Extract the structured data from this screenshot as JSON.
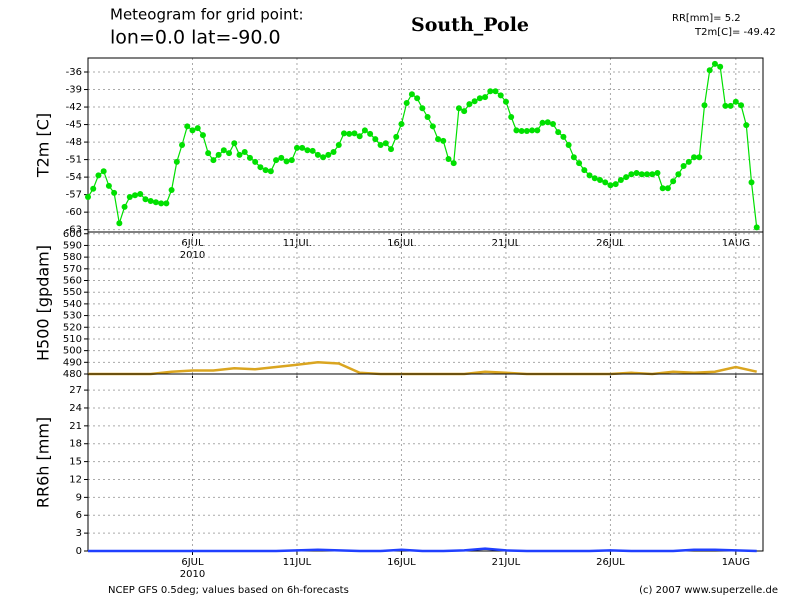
{
  "header": {
    "title_line1": "Meteogram for grid point:",
    "title_line2": "lon=0.0 lat=-90.0",
    "station": "South_Pole",
    "rr": "RR[mm]= 5.2",
    "t2m": "T2m[C]= -49.42"
  },
  "footer": {
    "left": "NCEP GFS 0.5deg; values based on 6h-forecasts",
    "right": "(c) 2007 www.superzelle.de"
  },
  "chart_data": [
    {
      "type": "line",
      "ylabel": "T2m [C]",
      "color": "#00e000",
      "markers": true,
      "grid": true,
      "x_year_label": "2010",
      "xlim": [
        1,
        33.3
      ],
      "ylim": [
        -63.4,
        -33.6
      ],
      "xticks": [
        {
          "value": 6,
          "label": "6JUL"
        },
        {
          "value": 11,
          "label": "11JUL"
        },
        {
          "value": 16,
          "label": "16JUL"
        },
        {
          "value": 21,
          "label": "21JUL"
        },
        {
          "value": 26,
          "label": "26JUL"
        },
        {
          "value": 32,
          "label": "1AUG"
        }
      ],
      "yticks": [
        -36,
        -39,
        -42,
        -45,
        -48,
        -51,
        -54,
        -57,
        -60,
        -63
      ],
      "x": [
        1,
        1.25,
        1.5,
        1.75,
        2,
        2.25,
        2.5,
        2.75,
        3,
        3.25,
        3.5,
        3.75,
        4,
        4.25,
        4.5,
        4.75,
        5,
        5.25,
        5.5,
        5.75,
        6,
        6.25,
        6.5,
        6.75,
        7,
        7.25,
        7.5,
        7.75,
        8,
        8.25,
        8.5,
        8.75,
        9,
        9.25,
        9.5,
        9.75,
        10,
        10.25,
        10.5,
        10.75,
        11,
        11.25,
        11.5,
        11.75,
        12,
        12.25,
        12.5,
        12.75,
        13,
        13.25,
        13.5,
        13.75,
        14,
        14.25,
        14.5,
        14.75,
        15,
        15.25,
        15.5,
        15.75,
        16,
        16.25,
        16.5,
        16.75,
        17,
        17.25,
        17.5,
        17.75,
        18,
        18.25,
        18.5,
        18.75,
        19,
        19.25,
        19.5,
        19.75,
        20,
        20.25,
        20.5,
        20.75,
        21,
        21.25,
        21.5,
        21.75,
        22,
        22.25,
        22.5,
        22.75,
        23,
        23.25,
        23.5,
        23.75,
        24,
        24.25,
        24.5,
        24.75,
        25,
        25.25,
        25.5,
        25.75,
        26,
        26.25,
        26.5,
        26.75,
        27,
        27.25,
        27.5,
        27.75,
        28,
        28.25,
        28.5,
        28.75,
        29,
        29.25,
        29.5,
        29.75,
        30,
        30.25,
        30.5,
        30.75,
        31,
        31.25,
        31.5,
        31.75,
        32,
        32.25,
        32.5,
        32.75,
        33
      ],
      "values": [
        -57.4,
        -56,
        -53.7,
        -53,
        -55.5,
        -56.7,
        -61.9,
        -59.1,
        -57.4,
        -57.1,
        -56.9,
        -57.8,
        -58.1,
        -58.3,
        -58.5,
        -58.5,
        -56.2,
        -51.4,
        -48.5,
        -45.3,
        -46,
        -45.6,
        -46.8,
        -49.9,
        -51.1,
        -50.2,
        -49.4,
        -49.9,
        -48.2,
        -50.2,
        -49.7,
        -50.7,
        -51.4,
        -52.3,
        -52.8,
        -53,
        -51.1,
        -50.7,
        -51.3,
        -51.1,
        -49,
        -49,
        -49.4,
        -49.5,
        -50.2,
        -50.6,
        -50.2,
        -49.7,
        -48.5,
        -46.5,
        -46.6,
        -46.5,
        -47,
        -46,
        -46.6,
        -47.5,
        -48.5,
        -48.2,
        -49.2,
        -47.1,
        -44.9,
        -41.3,
        -39.8,
        -40.5,
        -42.2,
        -43.7,
        -45.3,
        -47.5,
        -47.8,
        -50.9,
        -51.6,
        -42.2,
        -42.7,
        -41.5,
        -41,
        -40.5,
        -40.3,
        -39.3,
        -39.3,
        -40,
        -41.1,
        -43.7,
        -46,
        -46.1,
        -46.1,
        -46,
        -46,
        -44.7,
        -44.6,
        -44.9,
        -46.3,
        -47.1,
        -48.5,
        -50.6,
        -51.6,
        -52.8,
        -53.7,
        -54.2,
        -54.5,
        -54.9,
        -55.4,
        -55.2,
        -54.5,
        -54,
        -53.5,
        -53.3,
        -53.5,
        -53.5,
        -53.5,
        -53.3,
        -55.9,
        -55.9,
        -54.7,
        -53.5,
        -52.1,
        -51.4,
        -50.6,
        -50.6,
        -41.7,
        -35.7,
        -34.6,
        -35.1,
        -41.8,
        -41.8,
        -41.1,
        -41.7,
        -45.1,
        -54.9,
        -62.6
      ]
    },
    {
      "type": "line",
      "ylabel": "H500 [gpdam]",
      "color": "#daa520",
      "markers": false,
      "grid": true,
      "xlim": [
        1,
        33.3
      ],
      "ylim": [
        480,
        601.5
      ],
      "xticks": [
        6,
        11,
        16,
        21,
        26,
        32
      ],
      "yticks": [
        480,
        490,
        500,
        510,
        520,
        530,
        540,
        550,
        560,
        570,
        580,
        590,
        600
      ],
      "x": [
        1,
        2,
        3,
        4,
        5,
        6,
        7,
        8,
        9,
        10,
        11,
        12,
        13,
        14,
        15,
        16,
        17,
        18,
        19,
        20,
        21,
        22,
        23,
        24,
        25,
        26,
        27,
        28,
        29,
        30,
        31,
        32,
        33
      ],
      "values": [
        480,
        480,
        480,
        480,
        482,
        483,
        483,
        485,
        484,
        486,
        488,
        490,
        489,
        481,
        480,
        480,
        480,
        480,
        480,
        482,
        481,
        480,
        480,
        480,
        480,
        480,
        481,
        480,
        482,
        481,
        482,
        486,
        482
      ]
    },
    {
      "type": "line",
      "ylabel": "RR6h [mm]",
      "color": "#2040ff",
      "markers": false,
      "grid": true,
      "x_year_label": "2010",
      "xlim": [
        1,
        33.3
      ],
      "ylim": [
        0,
        29.7
      ],
      "xticks": [
        {
          "value": 6,
          "label": "6JUL"
        },
        {
          "value": 11,
          "label": "11JUL"
        },
        {
          "value": 16,
          "label": "16JUL"
        },
        {
          "value": 21,
          "label": "21JUL"
        },
        {
          "value": 26,
          "label": "26JUL"
        },
        {
          "value": 32,
          "label": "1AUG"
        }
      ],
      "yticks": [
        0,
        3,
        6,
        9,
        12,
        15,
        18,
        21,
        24,
        27
      ],
      "x": [
        1,
        2,
        3,
        4,
        5,
        6,
        7,
        8,
        9,
        10,
        11,
        12,
        13,
        14,
        15,
        16,
        17,
        18,
        19,
        20,
        21,
        22,
        23,
        24,
        25,
        26,
        27,
        28,
        29,
        30,
        31,
        32,
        33
      ],
      "values": [
        0,
        0,
        0,
        0,
        0,
        0,
        0,
        0,
        0,
        0,
        0.1,
        0.2,
        0.1,
        0,
        0,
        0.2,
        0,
        0,
        0.1,
        0.4,
        0.1,
        0,
        0,
        0,
        0,
        0.1,
        0,
        0,
        0,
        0.2,
        0.2,
        0.1,
        0
      ]
    }
  ]
}
